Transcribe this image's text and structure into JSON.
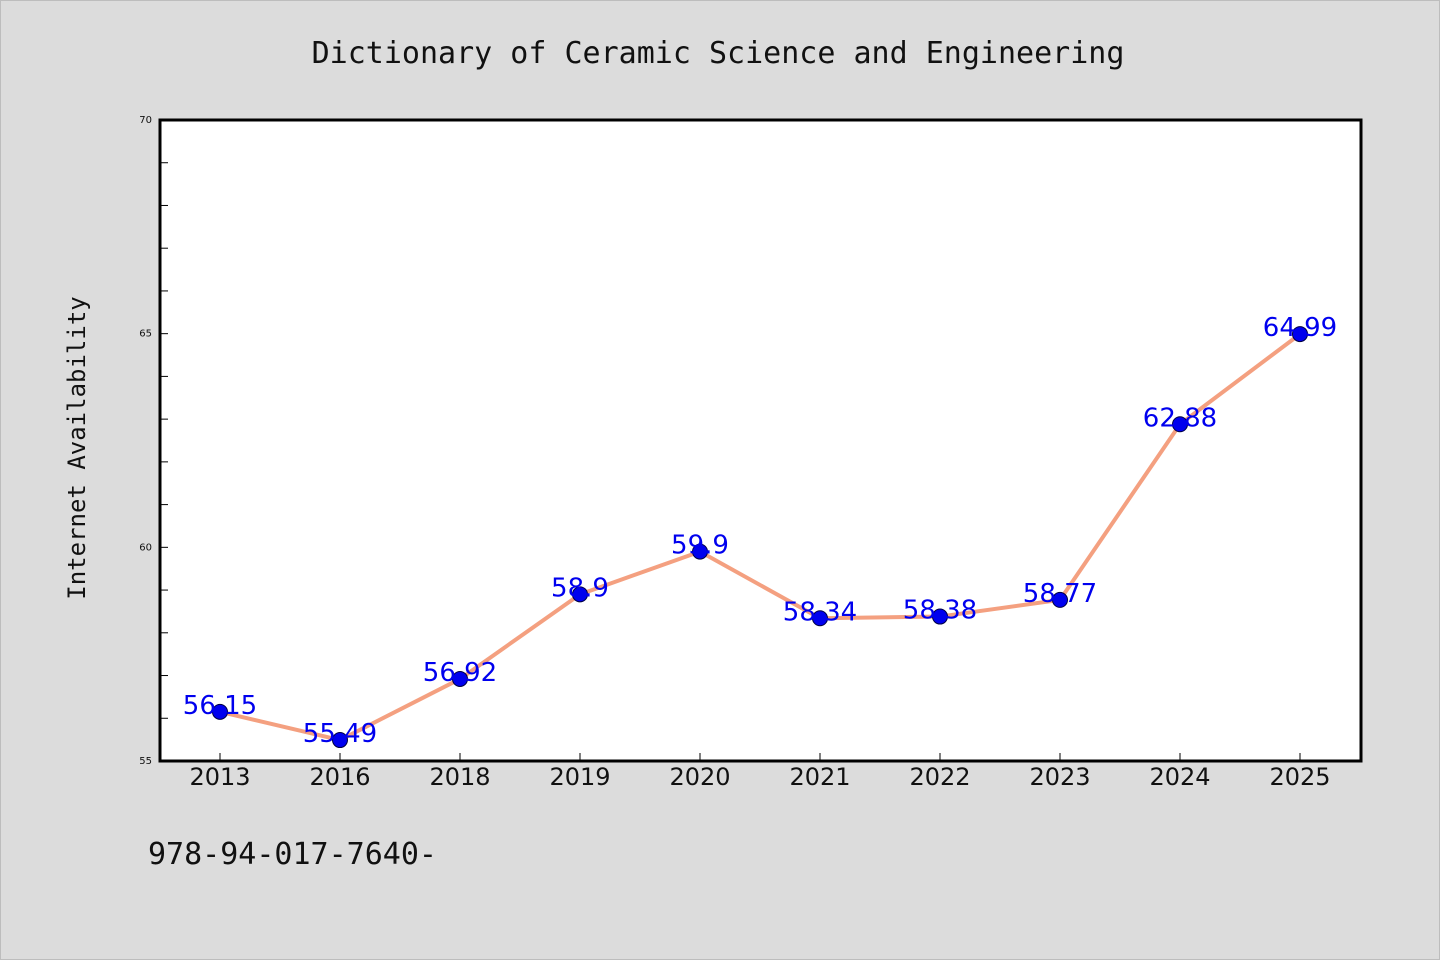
{
  "chart_data": {
    "type": "line",
    "title": "Dictionary of Ceramic Science and Engineering",
    "xlabel": "",
    "ylabel": "Internet Availability",
    "categories": [
      "2013",
      "2016",
      "2018",
      "2019",
      "2020",
      "2021",
      "2022",
      "2023",
      "2024",
      "2025"
    ],
    "series": [
      {
        "values": [
          56.15,
          55.49,
          56.92,
          58.9,
          59.9,
          58.34,
          58.38,
          58.77,
          62.88,
          64.99
        ],
        "value_labels": [
          "56.15",
          "55.49",
          "56.92",
          "58.9",
          "59.9",
          "58.34",
          "58.38",
          "58.77",
          "62.88",
          "64.99"
        ]
      }
    ],
    "ylim": [
      55,
      70
    ],
    "y_ticks": [
      "55",
      "60",
      "65",
      "70"
    ],
    "grid": false,
    "legend": "none",
    "colors": {
      "line": "#f4a080",
      "marker": "#0000ee",
      "label": "#0000ee"
    }
  },
  "footer_text": "978-94-017-7640-"
}
